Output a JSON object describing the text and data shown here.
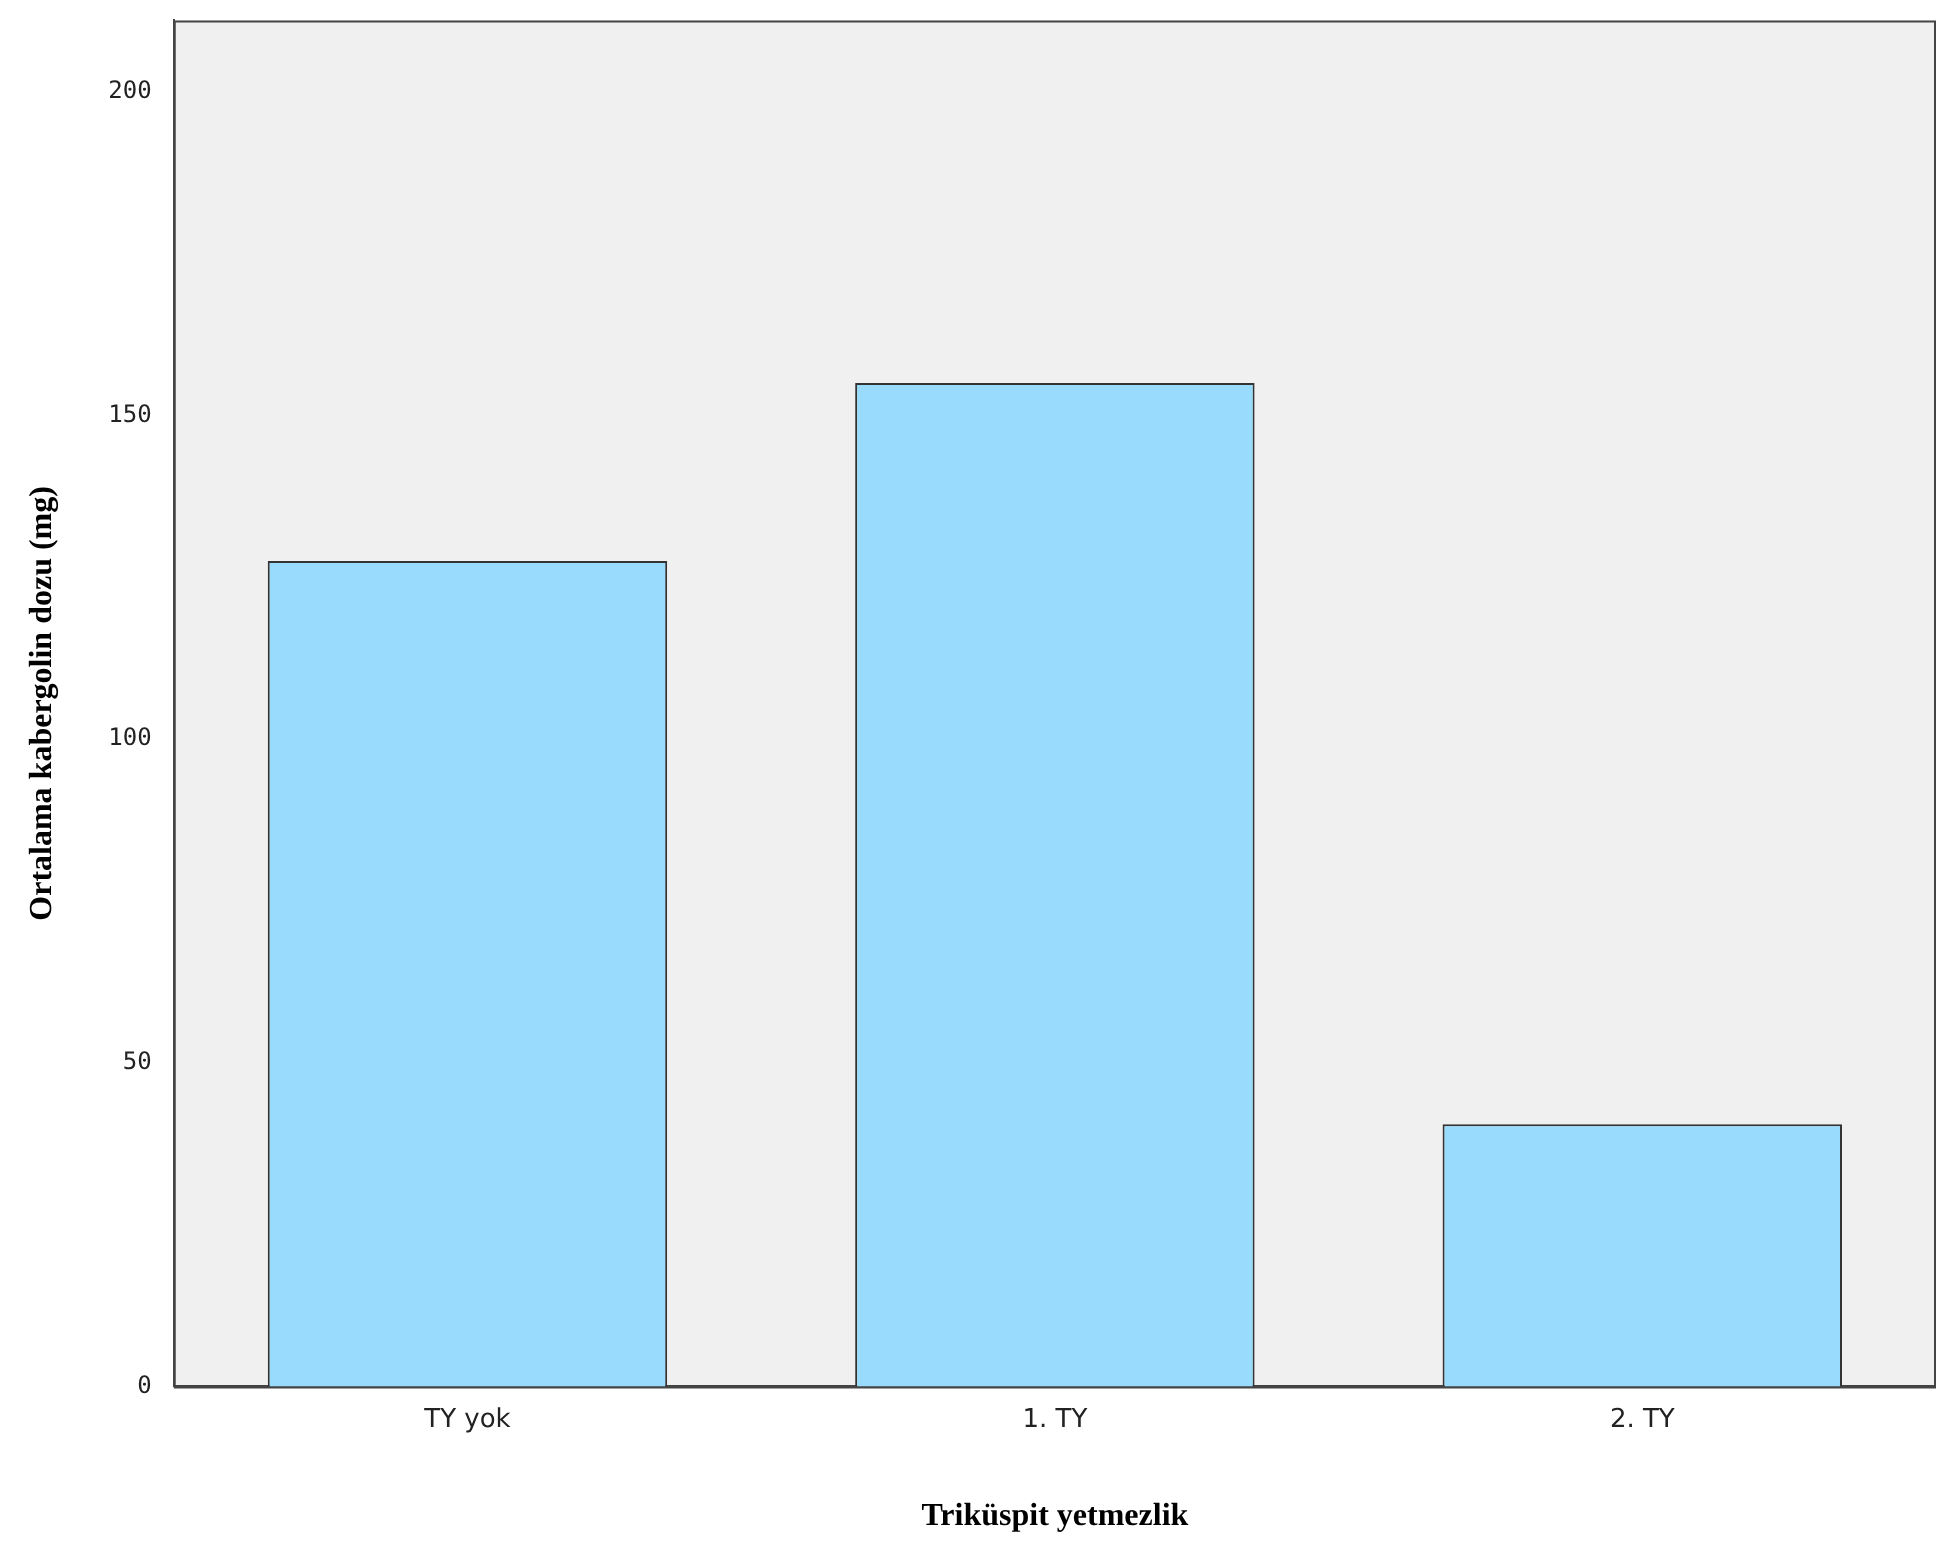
{
  "chart_data": {
    "type": "bar",
    "xlabel": "Triküspit yetmezlik",
    "ylabel": "Ortalama kabergolin dozu (mg)",
    "categories": [
      "TY yok",
      "1. TY",
      "2. TY"
    ],
    "values": [
      127.5,
      155,
      40.5
    ],
    "color": "#99dbfc",
    "ylim": [
      0,
      211
    ],
    "yticks": [
      0,
      50,
      100,
      150,
      200
    ],
    "grid": false,
    "legend": false
  }
}
